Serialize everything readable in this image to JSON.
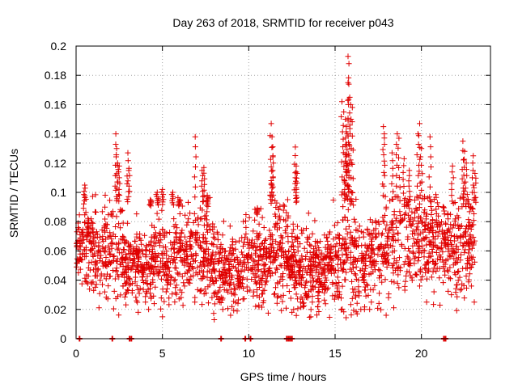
{
  "chart_data": {
    "type": "scatter",
    "title": "Day 263 of 2018, SRMTID for receiver p043",
    "xlabel": "GPS time / hours",
    "ylabel": "SRMTID / TECUs",
    "xlim": [
      0,
      24
    ],
    "ylim": [
      0,
      0.2
    ],
    "x_ticks": [
      0,
      5,
      10,
      15,
      20
    ],
    "x_tick_labels": [
      "0",
      "5",
      "10",
      "15",
      "20"
    ],
    "y_ticks": [
      0,
      0.02,
      0.04,
      0.06,
      0.08,
      0.1,
      0.12,
      0.14,
      0.16,
      0.18,
      0.2
    ],
    "y_tick_labels": [
      "0",
      "0.02",
      "0.04",
      "0.06",
      "0.08",
      "0.1",
      "0.12",
      "0.14",
      "0.16",
      "0.18",
      "0.2"
    ],
    "grid": true,
    "marker": "plus",
    "color": "#e00000",
    "series": [
      {
        "name": "SRMTID",
        "profile_x": [
          0,
          0.5,
          1,
          1.5,
          2,
          2.5,
          3,
          3.5,
          4,
          4.5,
          5,
          5.5,
          6,
          6.5,
          7,
          7.5,
          8,
          8.5,
          9,
          9.5,
          10,
          10.5,
          11,
          11.5,
          12,
          12.5,
          13,
          13.5,
          14,
          14.5,
          15,
          15.5,
          16,
          16.5,
          17,
          17.5,
          18,
          18.5,
          19,
          19.5,
          20,
          20.5,
          21,
          21.5,
          22,
          22.5,
          23
        ],
        "profile_median": [
          0.055,
          0.065,
          0.06,
          0.058,
          0.062,
          0.06,
          0.055,
          0.052,
          0.05,
          0.052,
          0.055,
          0.056,
          0.058,
          0.06,
          0.062,
          0.06,
          0.05,
          0.045,
          0.045,
          0.042,
          0.06,
          0.055,
          0.05,
          0.058,
          0.06,
          0.052,
          0.045,
          0.048,
          0.045,
          0.048,
          0.055,
          0.062,
          0.058,
          0.052,
          0.055,
          0.06,
          0.065,
          0.068,
          0.07,
          0.072,
          0.068,
          0.07,
          0.075,
          0.065,
          0.06,
          0.065,
          0.07
        ],
        "profile_spread": [
          0.012,
          0.015,
          0.015,
          0.018,
          0.02,
          0.018,
          0.016,
          0.015,
          0.014,
          0.015,
          0.016,
          0.016,
          0.017,
          0.018,
          0.02,
          0.02,
          0.015,
          0.013,
          0.013,
          0.012,
          0.016,
          0.018,
          0.015,
          0.02,
          0.022,
          0.015,
          0.015,
          0.018,
          0.014,
          0.015,
          0.016,
          0.025,
          0.022,
          0.016,
          0.016,
          0.018,
          0.02,
          0.022,
          0.022,
          0.022,
          0.022,
          0.02,
          0.02,
          0.02,
          0.018,
          0.018,
          0.018
        ],
        "peaks": [
          {
            "x": 0.5,
            "y": 0.105
          },
          {
            "x": 2.3,
            "y": 0.14
          },
          {
            "x": 2.35,
            "y": 0.13
          },
          {
            "x": 2.4,
            "y": 0.12
          },
          {
            "x": 2.5,
            "y": 0.118
          },
          {
            "x": 3.0,
            "y": 0.127
          },
          {
            "x": 3.05,
            "y": 0.115
          },
          {
            "x": 4.3,
            "y": 0.095
          },
          {
            "x": 4.7,
            "y": 0.1
          },
          {
            "x": 5.0,
            "y": 0.102
          },
          {
            "x": 5.6,
            "y": 0.1
          },
          {
            "x": 6.0,
            "y": 0.095
          },
          {
            "x": 6.9,
            "y": 0.138
          },
          {
            "x": 7.3,
            "y": 0.115
          },
          {
            "x": 7.4,
            "y": 0.117
          },
          {
            "x": 7.6,
            "y": 0.098
          },
          {
            "x": 10.5,
            "y": 0.085
          },
          {
            "x": 11.3,
            "y": 0.147
          },
          {
            "x": 11.35,
            "y": 0.138
          },
          {
            "x": 11.4,
            "y": 0.125
          },
          {
            "x": 11.3,
            "y": 0.108
          },
          {
            "x": 12.7,
            "y": 0.131
          },
          {
            "x": 12.75,
            "y": 0.118
          },
          {
            "x": 12.8,
            "y": 0.113
          },
          {
            "x": 15.4,
            "y": 0.162
          },
          {
            "x": 15.5,
            "y": 0.155
          },
          {
            "x": 15.6,
            "y": 0.15
          },
          {
            "x": 15.65,
            "y": 0.145
          },
          {
            "x": 15.7,
            "y": 0.14
          },
          {
            "x": 15.75,
            "y": 0.193
          },
          {
            "x": 15.8,
            "y": 0.188
          },
          {
            "x": 15.75,
            "y": 0.175
          },
          {
            "x": 15.85,
            "y": 0.165
          },
          {
            "x": 15.9,
            "y": 0.16
          },
          {
            "x": 16.0,
            "y": 0.158
          },
          {
            "x": 15.6,
            "y": 0.132
          },
          {
            "x": 15.8,
            "y": 0.125
          },
          {
            "x": 17.8,
            "y": 0.145
          },
          {
            "x": 17.85,
            "y": 0.14
          },
          {
            "x": 18.3,
            "y": 0.127
          },
          {
            "x": 18.6,
            "y": 0.14
          },
          {
            "x": 18.7,
            "y": 0.137
          },
          {
            "x": 19.0,
            "y": 0.123
          },
          {
            "x": 19.3,
            "y": 0.115
          },
          {
            "x": 19.8,
            "y": 0.14
          },
          {
            "x": 19.9,
            "y": 0.147
          },
          {
            "x": 20.0,
            "y": 0.13
          },
          {
            "x": 20.5,
            "y": 0.138
          },
          {
            "x": 21.8,
            "y": 0.118
          },
          {
            "x": 22.4,
            "y": 0.135
          },
          {
            "x": 22.5,
            "y": 0.128
          },
          {
            "x": 22.6,
            "y": 0.12
          },
          {
            "x": 23.0,
            "y": 0.125
          },
          {
            "x": 23.1,
            "y": 0.113
          }
        ],
        "lows": [
          {
            "x": 3.6,
            "y": 0.018
          },
          {
            "x": 4.2,
            "y": 0.02
          },
          {
            "x": 5.0,
            "y": 0.015
          },
          {
            "x": 8.0,
            "y": 0.013
          },
          {
            "x": 8.5,
            "y": 0.02
          },
          {
            "x": 8.3,
            "y": 0.025
          },
          {
            "x": 12.5,
            "y": 0.018
          },
          {
            "x": 12.6,
            "y": 0.02
          },
          {
            "x": 13.0,
            "y": 0.025
          },
          {
            "x": 14.0,
            "y": 0.022
          },
          {
            "x": 17.0,
            "y": 0.02
          },
          {
            "x": 17.1,
            "y": 0.025
          },
          {
            "x": 16.7,
            "y": 0.02
          },
          {
            "x": 20.3,
            "y": 0.025
          }
        ],
        "zeros": [
          0.2,
          2.1,
          3.1,
          3.2,
          8.4,
          9.8,
          10.1,
          12.2,
          12.3,
          12.4,
          12.5,
          21.3,
          21.4
        ]
      }
    ]
  }
}
